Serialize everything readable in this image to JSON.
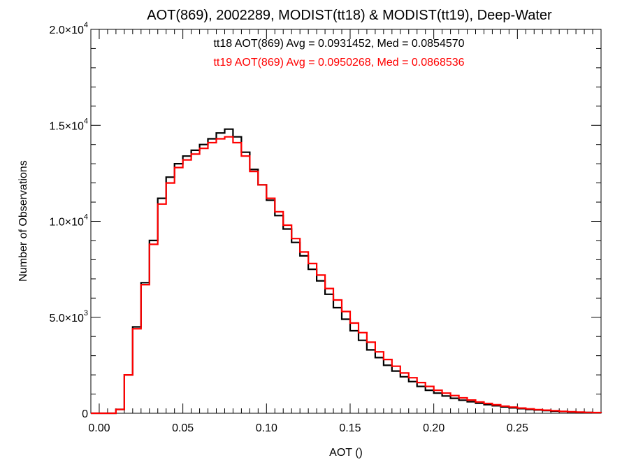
{
  "chart_data": {
    "type": "line",
    "title": "AOT(869), 2002289, MODIST(tt18) & MODIST(tt19), Deep-Water",
    "xlabel": "AOT ()",
    "ylabel": "Number of Observations",
    "xlim": [
      -0.005,
      0.3
    ],
    "ylim": [
      0,
      20000
    ],
    "x_ticks": [
      {
        "value": 0.0,
        "label": "0.00"
      },
      {
        "value": 0.05,
        "label": "0.05"
      },
      {
        "value": 0.1,
        "label": "0.10"
      },
      {
        "value": 0.15,
        "label": "0.15"
      },
      {
        "value": 0.2,
        "label": "0.20"
      },
      {
        "value": 0.25,
        "label": "0.25"
      }
    ],
    "y_ticks": [
      {
        "value": 0,
        "mant": "0",
        "exp": ""
      },
      {
        "value": 5000,
        "mant": "5.0×10",
        "exp": "3"
      },
      {
        "value": 10000,
        "mant": "1.0×10",
        "exp": "4"
      },
      {
        "value": 15000,
        "mant": "1.5×10",
        "exp": "4"
      },
      {
        "value": 20000,
        "mant": "2.0×10",
        "exp": "4"
      }
    ],
    "annotations": [
      {
        "text": "tt18 AOT(869) Avg = 0.0931452, Med = 0.0854570",
        "color": "#000000"
      },
      {
        "text": "tt19 AOT(869) Avg = 0.0950268, Med = 0.0868536",
        "color": "#ff0000"
      }
    ],
    "grid": false,
    "series": [
      {
        "color": "#000000",
        "x": [
          0.0,
          0.005,
          0.01,
          0.015,
          0.02,
          0.025,
          0.03,
          0.035,
          0.04,
          0.045,
          0.05,
          0.055,
          0.06,
          0.065,
          0.07,
          0.075,
          0.08,
          0.085,
          0.09,
          0.095,
          0.1,
          0.105,
          0.11,
          0.115,
          0.12,
          0.125,
          0.13,
          0.135,
          0.14,
          0.145,
          0.15,
          0.155,
          0.16,
          0.165,
          0.17,
          0.175,
          0.18,
          0.185,
          0.19,
          0.195,
          0.2,
          0.205,
          0.21,
          0.215,
          0.22,
          0.225,
          0.23,
          0.235,
          0.24,
          0.245,
          0.25,
          0.255,
          0.26,
          0.265,
          0.27,
          0.275,
          0.28,
          0.285,
          0.29,
          0.295,
          0.3
        ],
        "values": [
          0,
          0,
          200,
          2000,
          4500,
          6800,
          9000,
          11200,
          12300,
          13000,
          13400,
          13700,
          14000,
          14300,
          14600,
          14800,
          14400,
          13600,
          12700,
          11900,
          11100,
          10300,
          9600,
          8900,
          8200,
          7500,
          6900,
          6200,
          5500,
          4900,
          4300,
          3800,
          3300,
          2900,
          2500,
          2200,
          1900,
          1650,
          1400,
          1200,
          1050,
          900,
          780,
          680,
          600,
          520,
          450,
          390,
          330,
          280,
          240,
          200,
          170,
          140,
          110,
          90,
          70,
          50,
          40,
          30,
          20
        ]
      },
      {
        "color": "#ff0000",
        "x": [
          0.0,
          0.005,
          0.01,
          0.015,
          0.02,
          0.025,
          0.03,
          0.035,
          0.04,
          0.045,
          0.05,
          0.055,
          0.06,
          0.065,
          0.07,
          0.075,
          0.08,
          0.085,
          0.09,
          0.095,
          0.1,
          0.105,
          0.11,
          0.115,
          0.12,
          0.125,
          0.13,
          0.135,
          0.14,
          0.145,
          0.15,
          0.155,
          0.16,
          0.165,
          0.17,
          0.175,
          0.18,
          0.185,
          0.19,
          0.195,
          0.2,
          0.205,
          0.21,
          0.215,
          0.22,
          0.225,
          0.23,
          0.235,
          0.24,
          0.245,
          0.25,
          0.255,
          0.26,
          0.265,
          0.27,
          0.275,
          0.28,
          0.285,
          0.29,
          0.295,
          0.3
        ],
        "values": [
          0,
          0,
          200,
          2000,
          4400,
          6700,
          8800,
          10900,
          12000,
          12800,
          13200,
          13500,
          13800,
          14100,
          14300,
          14400,
          14100,
          13400,
          12600,
          11900,
          11200,
          10500,
          9800,
          9100,
          8400,
          7800,
          7200,
          6500,
          5900,
          5300,
          4700,
          4200,
          3700,
          3200,
          2800,
          2450,
          2100,
          1850,
          1600,
          1400,
          1200,
          1050,
          920,
          800,
          690,
          590,
          510,
          440,
          370,
          320,
          270,
          230,
          190,
          160,
          130,
          100,
          80,
          60,
          45,
          35,
          25
        ]
      }
    ]
  }
}
